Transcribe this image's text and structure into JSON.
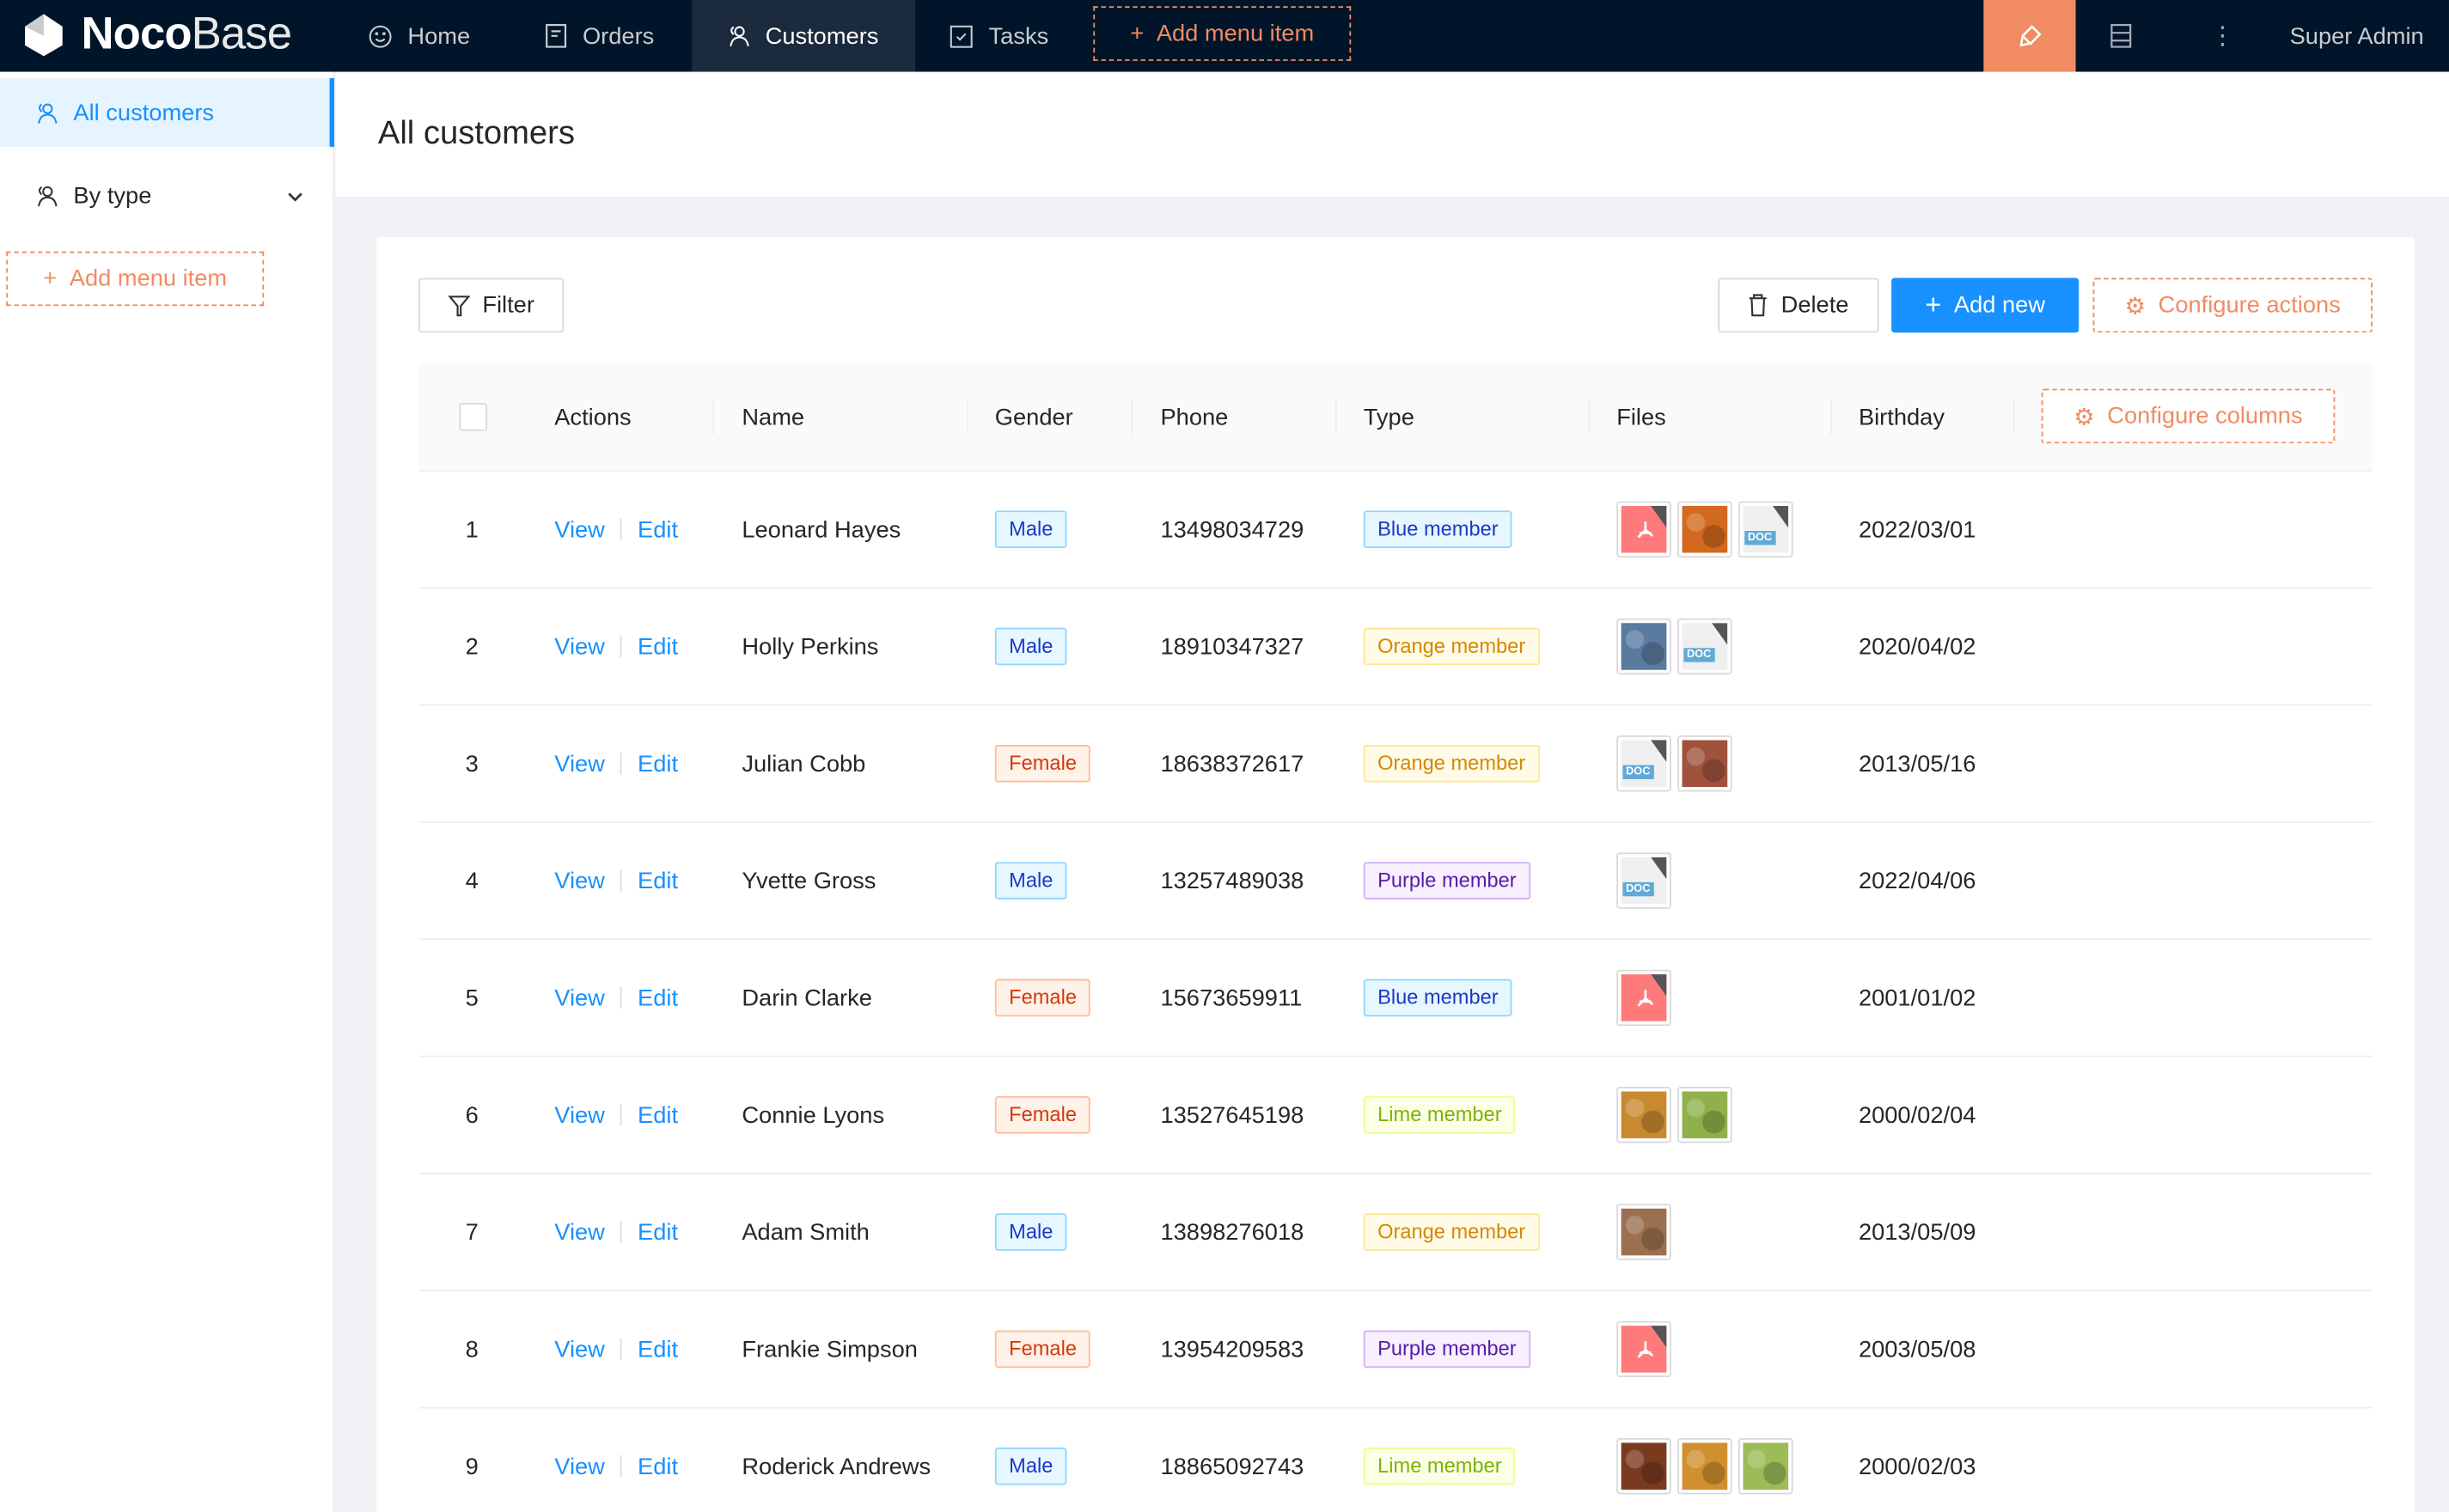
{
  "app": {
    "logo_bold": "Noco",
    "logo_thin": "Base",
    "user": "Super Admin"
  },
  "topnav": {
    "items": [
      {
        "label": "Home",
        "icon": "smile-icon"
      },
      {
        "label": "Orders",
        "icon": "file-icon"
      },
      {
        "label": "Customers",
        "icon": "user-icon",
        "active": true
      },
      {
        "label": "Tasks",
        "icon": "check-square-icon"
      }
    ],
    "add_menu_item": "Add menu item"
  },
  "sidebar": {
    "items": [
      {
        "label": "All customers",
        "active": true
      },
      {
        "label": "By type"
      }
    ],
    "add_menu_item": "Add menu item"
  },
  "page": {
    "title": "All customers"
  },
  "toolbar": {
    "filter": "Filter",
    "delete": "Delete",
    "add_new": "Add new",
    "configure_actions": "Configure actions"
  },
  "table": {
    "columns": [
      "Actions",
      "Name",
      "Gender",
      "Phone",
      "Type",
      "Files",
      "Birthday"
    ],
    "configure_columns": "Configure columns",
    "view_label": "View",
    "edit_label": "Edit",
    "rows": [
      {
        "no": "1",
        "name": "Leonard Hayes",
        "gender": "Male",
        "phone": "13498034729",
        "type": "Blue member",
        "files": [
          "pdf",
          "image:#d2691e",
          "doc"
        ],
        "birthday": "2022/03/01"
      },
      {
        "no": "2",
        "name": "Holly Perkins",
        "gender": "Male",
        "phone": "18910347327",
        "type": "Orange member",
        "files": [
          "image:#5a7aa0",
          "doc"
        ],
        "birthday": "2020/04/02"
      },
      {
        "no": "3",
        "name": "Julian Cobb",
        "gender": "Female",
        "phone": "18638372617",
        "type": "Orange member",
        "files": [
          "doc",
          "image:#a0523c"
        ],
        "birthday": "2013/05/16"
      },
      {
        "no": "4",
        "name": "Yvette Gross",
        "gender": "Male",
        "phone": "13257489038",
        "type": "Purple member",
        "files": [
          "doc"
        ],
        "birthday": "2022/04/06"
      },
      {
        "no": "5",
        "name": "Darin Clarke",
        "gender": "Female",
        "phone": "15673659911",
        "type": "Blue member",
        "files": [
          "pdf"
        ],
        "birthday": "2001/01/02"
      },
      {
        "no": "6",
        "name": "Connie Lyons",
        "gender": "Female",
        "phone": "13527645198",
        "type": "Lime member",
        "files": [
          "image:#c88a30",
          "image:#8fb04a"
        ],
        "birthday": "2000/02/04"
      },
      {
        "no": "7",
        "name": "Adam Smith",
        "gender": "Male",
        "phone": "13898276018",
        "type": "Orange member",
        "files": [
          "image:#9a7050"
        ],
        "birthday": "2013/05/09"
      },
      {
        "no": "8",
        "name": "Frankie Simpson",
        "gender": "Female",
        "phone": "13954209583",
        "type": "Purple member",
        "files": [
          "pdf"
        ],
        "birthday": "2003/05/08"
      },
      {
        "no": "9",
        "name": "Roderick Andrews",
        "gender": "Male",
        "phone": "18865092743",
        "type": "Lime member",
        "files": [
          "image:#7a3a20",
          "image:#d09030",
          "image:#9cbc58"
        ],
        "birthday": "2000/02/03"
      }
    ]
  },
  "colors": {
    "topbar": "#001529",
    "accent": "#1890ff",
    "config": "#f18b62",
    "tags": {
      "Male": [
        "#e6f7ff",
        "#91d5ff",
        "#1d39c4"
      ],
      "Female": [
        "#fff2e8",
        "#ffbb96",
        "#d4380d"
      ],
      "Blue member": [
        "#e6f7ff",
        "#91d5ff",
        "#1d39c4"
      ],
      "Orange member": [
        "#fffbe6",
        "#ffe58f",
        "#d48806"
      ],
      "Purple member": [
        "#f9f0ff",
        "#d3adf7",
        "#531dab"
      ],
      "Lime member": [
        "#fcffe6",
        "#eaff8f",
        "#7cb305"
      ]
    }
  }
}
